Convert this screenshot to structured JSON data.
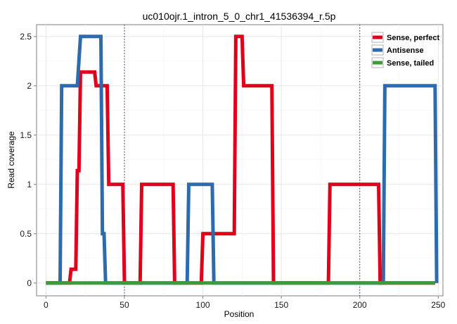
{
  "chart_data": {
    "type": "line",
    "title": "uc010ojr.1_intron_5_0_chr1_41536394_r.5p",
    "xlabel": "Position",
    "ylabel": "Read coverage",
    "xlim": [
      -6,
      253
    ],
    "ylim": [
      -0.13,
      2.62
    ],
    "x_ticks": [
      0,
      50,
      100,
      150,
      200,
      250
    ],
    "y_ticks": [
      0,
      0.5,
      1,
      1.5,
      2,
      2.5
    ],
    "x_tick_labels": [
      "0",
      "50",
      "100",
      "150",
      "200",
      "250"
    ],
    "y_tick_labels": [
      "0",
      "0.5",
      "1",
      "1.5",
      "2",
      "2.5"
    ],
    "vlines": [
      50,
      200
    ],
    "grid": true,
    "legend_position": "top-right",
    "series": [
      {
        "name": "Sense, perfect",
        "color": "#e0001b",
        "points": [
          [
            0,
            0
          ],
          [
            15,
            0
          ],
          [
            16,
            0.14
          ],
          [
            19,
            0.14
          ],
          [
            20,
            1.14
          ],
          [
            21,
            1.14
          ],
          [
            22,
            2.14
          ],
          [
            31,
            2.14
          ],
          [
            32,
            2.0
          ],
          [
            39,
            2.0
          ],
          [
            40,
            1.0
          ],
          [
            49,
            1.0
          ],
          [
            50,
            0
          ],
          [
            60,
            0
          ],
          [
            61,
            1.0
          ],
          [
            81,
            1.0
          ],
          [
            82,
            0
          ],
          [
            99,
            0
          ],
          [
            100,
            0.5
          ],
          [
            120,
            0.5
          ],
          [
            121,
            2.5
          ],
          [
            125,
            2.5
          ],
          [
            126,
            2.0
          ],
          [
            144,
            2.0
          ],
          [
            145,
            0
          ],
          [
            180,
            0
          ],
          [
            181,
            1.0
          ],
          [
            212,
            1.0
          ],
          [
            213,
            0
          ],
          [
            248,
            0
          ]
        ]
      },
      {
        "name": "Antisense",
        "color": "#2e6bad",
        "points": [
          [
            0,
            0
          ],
          [
            9,
            0
          ],
          [
            10,
            2.0
          ],
          [
            20,
            2.0
          ],
          [
            22,
            2.5
          ],
          [
            35,
            2.5
          ],
          [
            36,
            0.5
          ],
          [
            37,
            0.5
          ],
          [
            38,
            0
          ],
          [
            90,
            0
          ],
          [
            91,
            1.0
          ],
          [
            106,
            1.0
          ],
          [
            107,
            0
          ],
          [
            215,
            0
          ],
          [
            216,
            2.0
          ],
          [
            248,
            2.0
          ],
          [
            249,
            0
          ]
        ]
      },
      {
        "name": "Sense, tailed",
        "color": "#3a9d3a",
        "points": [
          [
            0,
            0
          ],
          [
            248,
            0
          ]
        ]
      }
    ]
  }
}
